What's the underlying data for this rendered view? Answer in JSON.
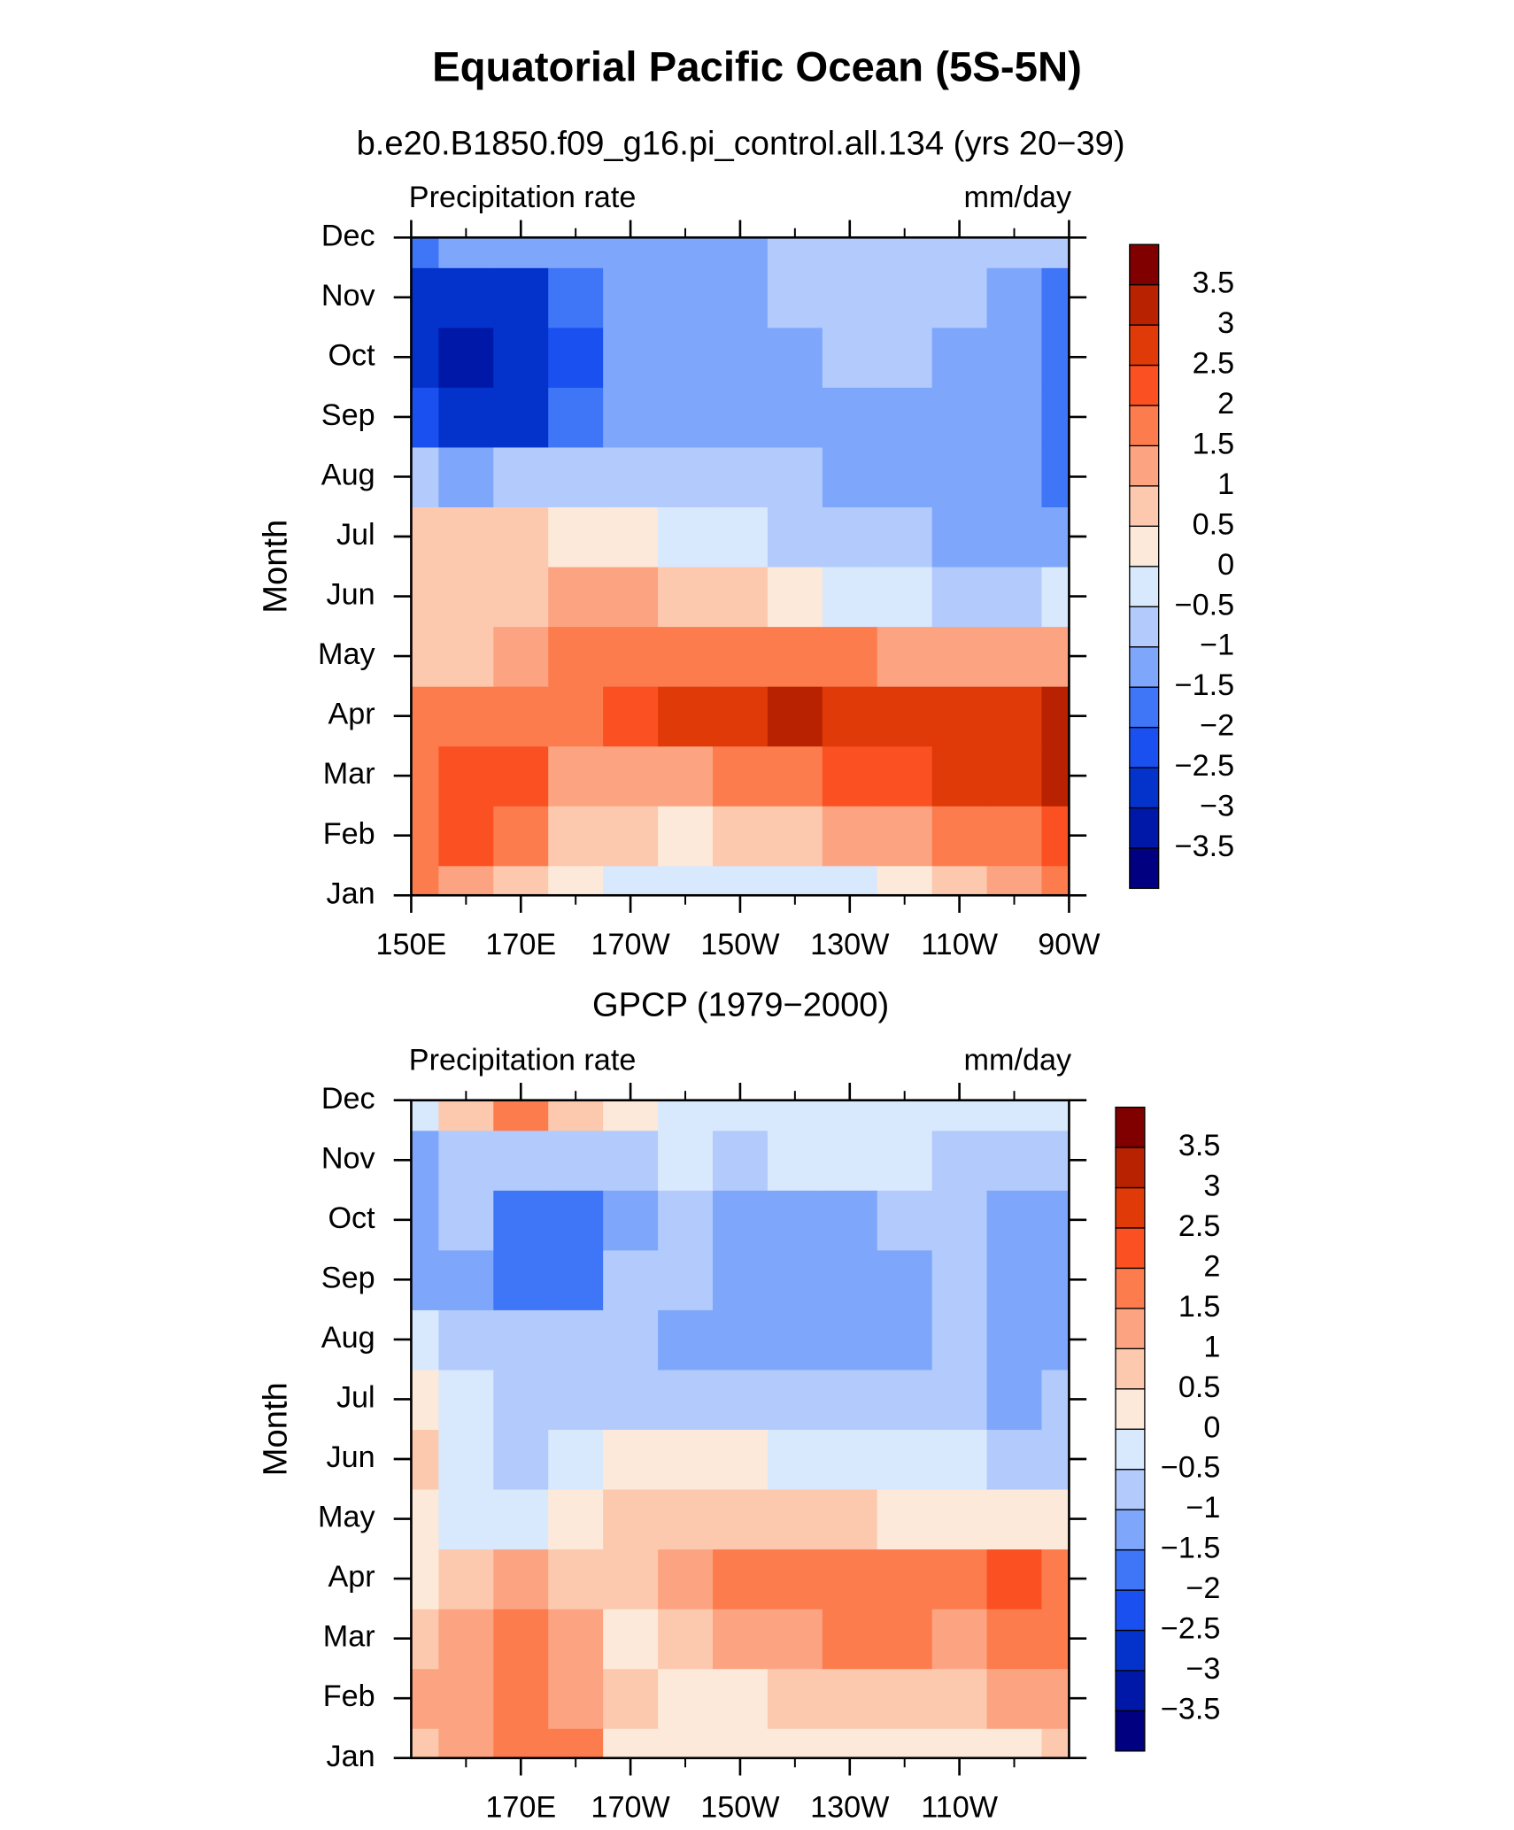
{
  "title": "Equatorial Pacific Ocean (5S-5N)",
  "chart_data": [
    {
      "type": "contour",
      "subtitle": "b.e20.B1850.f09_g16.pi_control.all.134 (yrs 20−39)",
      "left_label": "Precipitation rate",
      "right_label": "mm/day",
      "ylabel": "Month",
      "y_categories": [
        "Jan",
        "Feb",
        "Mar",
        "Apr",
        "May",
        "Jun",
        "Jul",
        "Aug",
        "Sep",
        "Oct",
        "Nov",
        "Dec"
      ],
      "x": [
        150,
        160,
        170,
        180,
        190,
        200,
        210,
        220,
        230,
        240,
        250,
        260,
        270
      ],
      "xlim": [
        150,
        270
      ],
      "xticks": [
        {
          "value": 150,
          "label": "150E"
        },
        {
          "value": 170,
          "label": "170E"
        },
        {
          "value": 190,
          "label": "170W"
        },
        {
          "value": 210,
          "label": "150W"
        },
        {
          "value": 230,
          "label": "130W"
        },
        {
          "value": 250,
          "label": "110W"
        },
        {
          "value": 270,
          "label": "90W"
        }
      ],
      "xminorticks": [
        160,
        180,
        200,
        220,
        240,
        260
      ],
      "levels": [
        {
          "value": -3.5,
          "label": "−3.5"
        },
        {
          "value": -3,
          "label": "−3"
        },
        {
          "value": -2.5,
          "label": "−2.5"
        },
        {
          "value": -2,
          "label": "−2"
        },
        {
          "value": -1.5,
          "label": "−1.5"
        },
        {
          "value": -1,
          "label": "−1"
        },
        {
          "value": -0.5,
          "label": "−0.5"
        },
        0,
        0.5,
        1,
        1.5,
        2,
        2.5,
        3,
        3.5
      ],
      "colors": [
        "#000080",
        "#0018a8",
        "#0433cc",
        "#1a4ff0",
        "#3f75f7",
        "#7ea6fb",
        "#b2cbfc",
        "#d8e8fd",
        "#fde9d9",
        "#fcc9ae",
        "#fca482",
        "#fc7c4e",
        "#fb5122",
        "#e03a08",
        "#b82200",
        "#800000"
      ],
      "z": [
        [
          1.5,
          1,
          0.5,
          0.2,
          -0.2,
          -0.4,
          -0.4,
          -0.3,
          -0.2,
          0.2,
          0.6,
          1,
          1.5
        ],
        [
          1.8,
          2.2,
          1.8,
          0.8,
          0.5,
          0.4,
          0.5,
          0.7,
          1,
          1.2,
          1.5,
          1.8,
          2
        ],
        [
          1.8,
          2.2,
          2.0,
          1.3,
          1.2,
          1.3,
          1.5,
          1.7,
          2,
          2.2,
          2.5,
          2.8,
          3
        ],
        [
          1.7,
          1.8,
          1.8,
          1.8,
          2.2,
          2.6,
          2.8,
          3.1,
          2.7,
          2.6,
          2.6,
          2.7,
          3.2
        ],
        [
          0.6,
          0.9,
          1.2,
          1.5,
          1.7,
          1.8,
          1.9,
          1.7,
          1.5,
          1.3,
          1.2,
          1.2,
          1.0
        ],
        [
          0.5,
          0.7,
          0.9,
          1.1,
          1.0,
          0.8,
          0.6,
          0.3,
          -0.2,
          -0.5,
          -0.6,
          -0.7,
          -0.5
        ],
        [
          0.7,
          0.8,
          0.6,
          0.4,
          0.2,
          -0.1,
          -0.4,
          -0.6,
          -0.8,
          -0.9,
          -1.1,
          -1.2,
          -1.3
        ],
        [
          -0.6,
          -1.2,
          -1.0,
          -0.8,
          -0.8,
          -0.9,
          -0.9,
          -1.0,
          -1.1,
          -1.2,
          -1.3,
          -1.4,
          -1.8
        ],
        [
          -2.2,
          -3.0,
          -2.6,
          -2.0,
          -1.4,
          -1.2,
          -1.2,
          -1.2,
          -1.3,
          -1.3,
          -1.3,
          -1.4,
          -1.8
        ],
        [
          -2.8,
          -3.2,
          -3.0,
          -2.2,
          -1.4,
          -1.2,
          -1.2,
          -1.1,
          -0.9,
          -0.9,
          -1.2,
          -1.4,
          -1.7
        ],
        [
          -2.6,
          -3.0,
          -2.6,
          -2.0,
          -1.3,
          -1.1,
          -1.1,
          -0.9,
          -0.8,
          -0.9,
          -1.0,
          -1.1,
          -1.6
        ],
        [
          -2.0,
          -1.5,
          -1.5,
          -1.4,
          -1.3,
          -1.2,
          -1.1,
          -1.0,
          -1.0,
          -0.9,
          -0.9,
          -0.9,
          -1.0
        ]
      ]
    },
    {
      "type": "contour",
      "subtitle": "GPCP (1979−2000)",
      "left_label": "Precipitation rate",
      "right_label": "mm/day",
      "ylabel": "Month",
      "y_categories": [
        "Jan",
        "Feb",
        "Mar",
        "Apr",
        "May",
        "Jun",
        "Jul",
        "Aug",
        "Sep",
        "Oct",
        "Nov",
        "Dec"
      ],
      "x": [
        150,
        160,
        170,
        180,
        190,
        200,
        210,
        220,
        230,
        240,
        250,
        260,
        270
      ],
      "xlim": [
        150,
        270
      ],
      "xticks": [
        {
          "value": 170,
          "label": "170E"
        },
        {
          "value": 190,
          "label": "170W"
        },
        {
          "value": 210,
          "label": "150W"
        },
        {
          "value": 230,
          "label": "130W"
        },
        {
          "value": 250,
          "label": "110W"
        }
      ],
      "xminorticks": [
        160,
        180,
        200,
        220,
        240,
        260
      ],
      "levels": [
        {
          "value": -3.5,
          "label": "−3.5"
        },
        {
          "value": -3,
          "label": "−3"
        },
        {
          "value": -2.5,
          "label": "−2.5"
        },
        {
          "value": -2,
          "label": "−2"
        },
        {
          "value": -1.5,
          "label": "−1.5"
        },
        {
          "value": -1,
          "label": "−1"
        },
        {
          "value": -0.5,
          "label": "−0.5"
        },
        0,
        0.5,
        1,
        1.5,
        2,
        2.5,
        3,
        3.5
      ],
      "colors": [
        "#000080",
        "#0018a8",
        "#0433cc",
        "#1a4ff0",
        "#3f75f7",
        "#7ea6fb",
        "#b2cbfc",
        "#d8e8fd",
        "#fde9d9",
        "#fcc9ae",
        "#fca482",
        "#fc7c4e",
        "#fb5122",
        "#e03a08",
        "#b82200",
        "#800000"
      ],
      "z": [
        [
          0.8,
          1.2,
          1.5,
          1.8,
          0.3,
          0.2,
          0.1,
          0.1,
          0.1,
          0,
          0.2,
          0.3,
          0.6
        ],
        [
          1.2,
          1.3,
          1.6,
          1.4,
          0.5,
          0.3,
          0.4,
          0.6,
          0.8,
          0.8,
          0.9,
          1.0,
          1.2
        ],
        [
          0.7,
          1.3,
          1.6,
          1.3,
          0.4,
          0.7,
          1.2,
          1.4,
          1.8,
          1.6,
          1.2,
          1.8,
          1.6
        ],
        [
          0.4,
          0.8,
          1.2,
          0.9,
          0.8,
          1.1,
          1.5,
          1.6,
          1.9,
          1.6,
          1.5,
          2.0,
          1.5
        ],
        [
          0.1,
          -0.3,
          -0.4,
          0.4,
          0.6,
          0.7,
          0.7,
          0.6,
          0.5,
          0.4,
          0.3,
          0.2,
          0.1
        ],
        [
          0.5,
          -0.3,
          -0.6,
          -0.3,
          0.1,
          0.2,
          0.1,
          -0.1,
          -0.3,
          -0.4,
          -0.5,
          -0.6,
          -0.6
        ],
        [
          0.4,
          -0.4,
          -0.7,
          -0.8,
          -0.7,
          -0.6,
          -0.6,
          -0.7,
          -0.8,
          -0.9,
          -0.8,
          -1.1,
          -0.8
        ],
        [
          -0.5,
          -0.6,
          -1.0,
          -1.0,
          -1.0,
          -1.1,
          -1.3,
          -1.4,
          -1.4,
          -1.2,
          -0.9,
          -1.3,
          -1.1
        ],
        [
          -1.4,
          -1.2,
          -1.8,
          -1.6,
          -1.0,
          -1.0,
          -1.2,
          -1.3,
          -1.3,
          -1.2,
          -0.9,
          -1.2,
          -1.2
        ],
        [
          -1.1,
          -0.9,
          -1.6,
          -1.8,
          -1.1,
          -0.9,
          -1.2,
          -1.2,
          -1.3,
          -0.9,
          -0.8,
          -1.2,
          -1.1
        ],
        [
          -1.1,
          -0.7,
          -0.8,
          -0.8,
          -0.6,
          -0.5,
          -0.6,
          -0.5,
          -0.4,
          -0.5,
          -0.6,
          -0.7,
          -0.6
        ],
        [
          -0.3,
          0.5,
          1.5,
          0.6,
          0.2,
          -0.2,
          -0.3,
          -0.3,
          -0.2,
          -0.2,
          -0.3,
          -0.3,
          -0.3
        ]
      ]
    }
  ]
}
